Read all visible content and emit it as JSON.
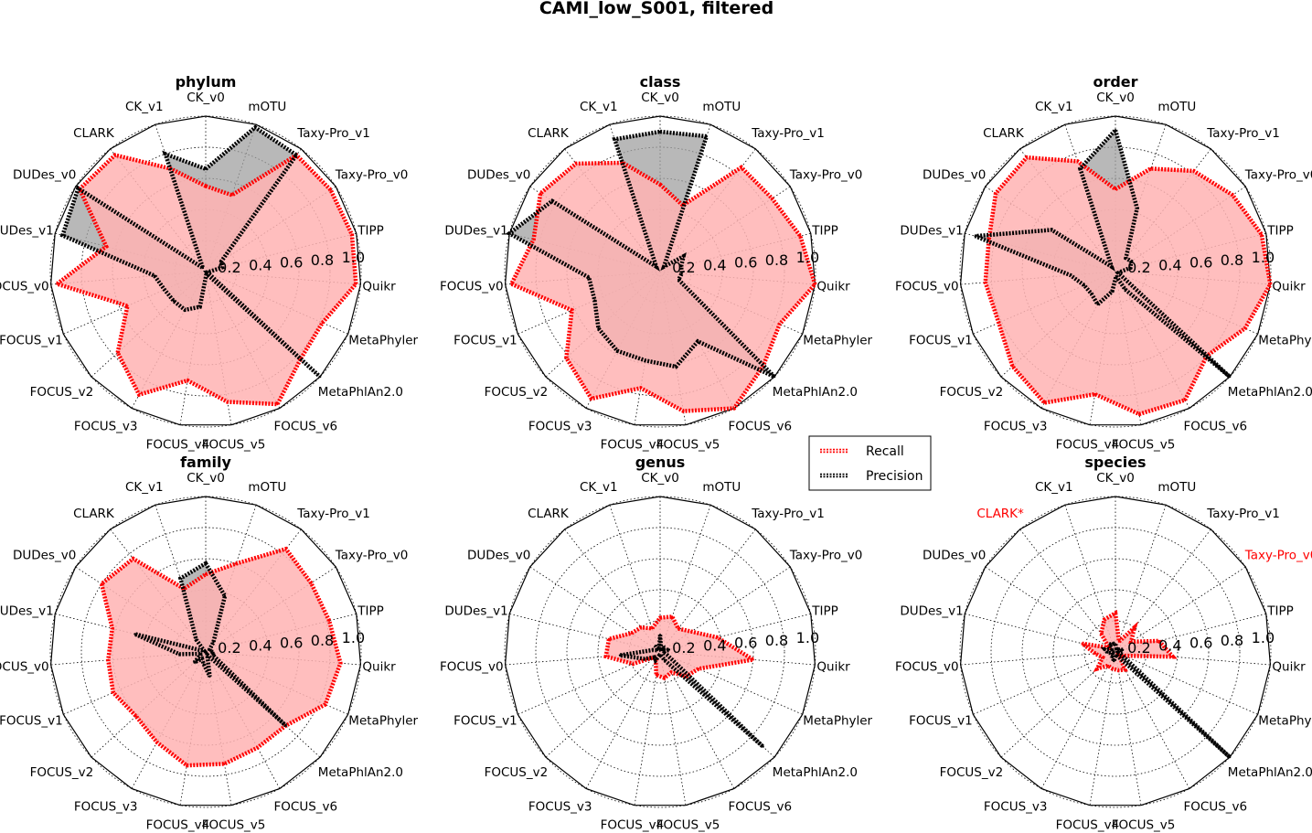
{
  "figure_title": "CAMI_low_S001, filtered",
  "chart_data": {
    "type": "radar",
    "categories": [
      "CK_v0",
      "mOTU",
      "Taxy-Pro_v1",
      "Taxy-Pro_v0",
      "TIPP",
      "Quikr",
      "MetaPhyler",
      "MetaPhlAn2.0",
      "FOCUS_v6",
      "FOCUS_v5",
      "FOCUS_v4",
      "FOCUS_v3",
      "FOCUS_v2",
      "FOCUS_v1",
      "FOCUS_v0",
      "DUDes_v1",
      "DUDes_v0",
      "CLARK",
      "CK_v1"
    ],
    "radial_ticks": [
      "0.2",
      "0.4",
      "0.6",
      "0.8",
      "1.0"
    ],
    "rlim": [
      0,
      1
    ],
    "grid": true,
    "legend": {
      "placement": "center",
      "entries": [
        "Recall",
        "Precision"
      ]
    },
    "colors": {
      "recall": "#ff0000",
      "recall_fill": "#ffb3b3",
      "precision": "#000000",
      "precision_fill": "#a0a0a0",
      "frame": "#000000"
    },
    "panels": [
      {
        "title": "phylum",
        "highlighted": [],
        "recall": [
          0.55,
          0.52,
          0.95,
          0.96,
          0.97,
          0.97,
          0.82,
          0.83,
          0.97,
          0.85,
          0.71,
          0.9,
          0.77,
          0.55,
          0.96,
          0.66,
          0.97,
          0.95,
          0.7
        ],
        "precision": [
          0.66,
          0.98,
          0.95,
          0.12,
          0.11,
          0.02,
          0.01,
          1.0,
          0.02,
          0.02,
          0.23,
          0.28,
          0.28,
          0.29,
          0.33,
          0.95,
          0.98,
          0.03,
          0.8
        ]
      },
      {
        "title": "class",
        "highlighted": [],
        "recall": [
          0.56,
          0.45,
          0.85,
          0.86,
          0.93,
          1.0,
          0.84,
          0.9,
          1.0,
          0.91,
          0.76,
          0.93,
          0.82,
          0.62,
          0.96,
          0.84,
          0.92,
          0.88,
          0.74
        ],
        "precision": [
          0.9,
          0.92,
          0.04,
          0.18,
          0.14,
          0.14,
          0.13,
          1.0,
          0.51,
          0.62,
          0.58,
          0.58,
          0.54,
          0.46,
          0.46,
          1.0,
          0.83,
          0.04,
          0.9
        ]
      },
      {
        "title": "order",
        "highlighted": [],
        "recall": [
          0.53,
          0.7,
          0.82,
          0.9,
          0.97,
          1.0,
          0.91,
          0.8,
          0.94,
          0.93,
          0.8,
          0.96,
          0.9,
          0.82,
          0.84,
          0.84,
          0.92,
          0.93,
          0.75
        ],
        "precision": [
          0.91,
          0.43,
          0.11,
          0.12,
          0.1,
          0.03,
          0.02,
          1.0,
          0.13,
          0.03,
          0.13,
          0.24,
          0.21,
          0.22,
          0.29,
          0.93,
          0.49,
          0.04,
          0.7
        ]
      },
      {
        "title": "family",
        "highlighted": [],
        "recall": [
          0.5,
          0.6,
          0.84,
          0.81,
          0.82,
          0.87,
          0.84,
          0.7,
          0.7,
          0.73,
          0.74,
          0.66,
          0.61,
          0.65,
          0.63,
          0.62,
          0.8,
          0.76,
          0.43
        ],
        "precision": [
          0.57,
          0.38,
          0.08,
          0.03,
          0.03,
          0.05,
          0.05,
          0.7,
          0.02,
          0.16,
          0.08,
          0.05,
          0.1,
          0.03,
          0.17,
          0.47,
          0.01,
          0.1,
          0.5
        ]
      },
      {
        "title": "genus",
        "highlighted": [],
        "recall": [
          0.22,
          0.24,
          0.19,
          0.24,
          0.38,
          0.6,
          0.27,
          0.23,
          0.15,
          0.17,
          0.15,
          0.06,
          0.05,
          0.19,
          0.35,
          0.34,
          0.22,
          0.2,
          0.16
        ],
        "precision": [
          0.11,
          0.02,
          0.03,
          0.02,
          0.06,
          0.02,
          0.05,
          0.9,
          0.06,
          0.02,
          0.02,
          0.06,
          0.05,
          0.11,
          0.26,
          0.05,
          0.02,
          0.05,
          0.02
        ]
      },
      {
        "title": "species",
        "highlighted": [
          "CLARK",
          "Taxy-Pro_v0"
        ],
        "recall": [
          0.25,
          0.07,
          0.2,
          0.12,
          0.29,
          0.37,
          0.06,
          0.03,
          0.13,
          0.12,
          0.11,
          0.1,
          0.16,
          0.09,
          0.13,
          0.22,
          0.05,
          0.15,
          0.22
        ],
        "precision": [
          0.05,
          0.02,
          0.02,
          0.03,
          0.05,
          0.02,
          0.04,
          1.0,
          0.03,
          0.02,
          0.06,
          0.04,
          0.03,
          0.02,
          0.05,
          0.07,
          0.03,
          0.06,
          0.06
        ]
      }
    ]
  }
}
